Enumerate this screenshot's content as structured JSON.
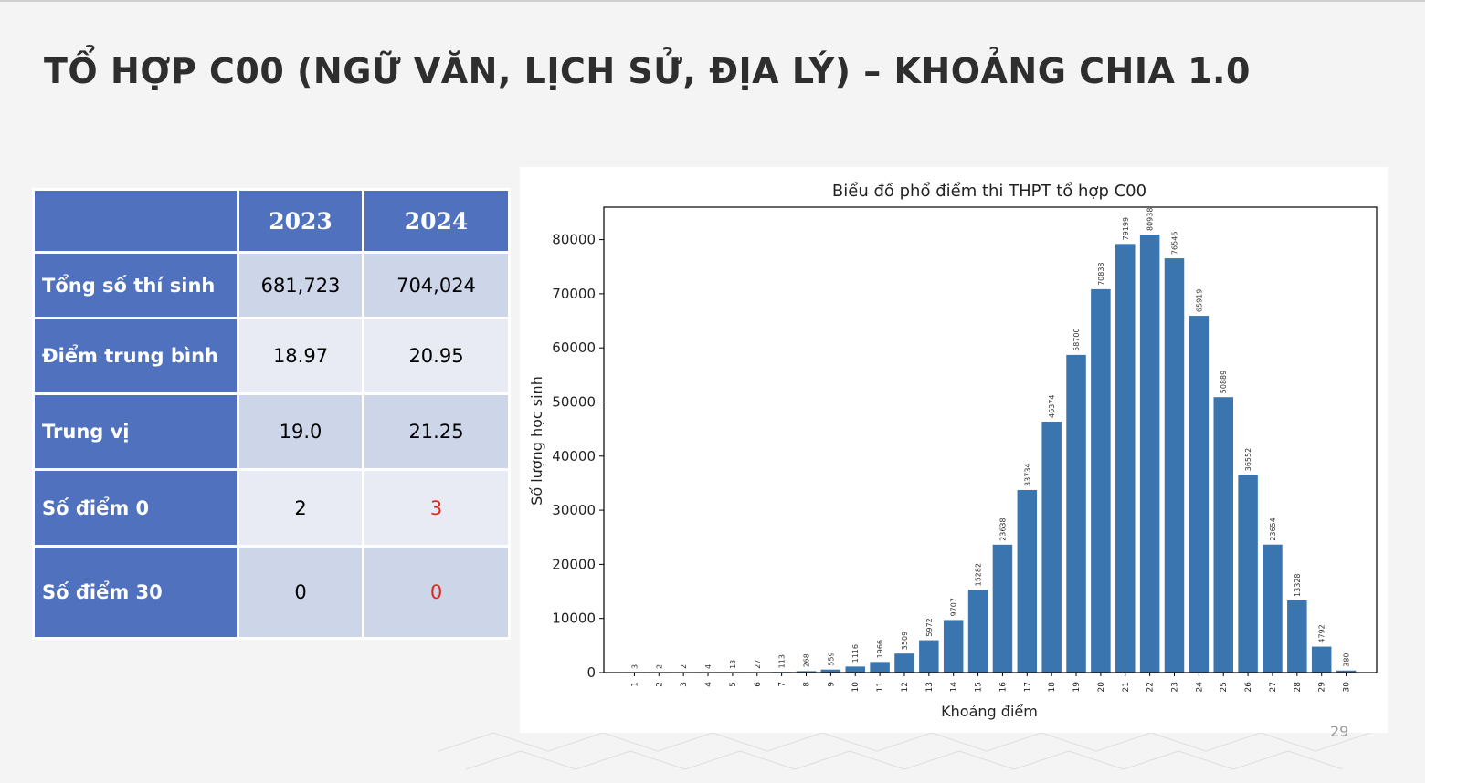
{
  "title": "TỔ HỢP C00 (NGỮ VĂN, LỊCH SỬ, ĐỊA LÝ) – KHOẢNG CHIA 1.0",
  "page_number": "29",
  "table": {
    "headers": [
      "",
      "2023",
      "2024"
    ],
    "rows": [
      {
        "label": "Tổng số thí sinh",
        "v2023": "681,723",
        "v2024": "704,024"
      },
      {
        "label": "Điểm trung bình",
        "v2023": "18.97",
        "v2024": "20.95"
      },
      {
        "label": "Trung vị",
        "v2023": "19.0",
        "v2024": "21.25"
      },
      {
        "label": "Số điểm 0",
        "v2023": "2",
        "v2024": "3"
      },
      {
        "label": "Số điểm 30",
        "v2023": "0",
        "v2024": "0"
      }
    ]
  },
  "chart_data": {
    "type": "bar",
    "title": "Biểu đồ phổ điểm thi THPT tổ hợp C00",
    "xlabel": "Khoảng điểm",
    "ylabel": "Số lượng học sinh",
    "categories": [
      "1",
      "2",
      "3",
      "4",
      "5",
      "6",
      "7",
      "8",
      "9",
      "10",
      "11",
      "12",
      "13",
      "14",
      "15",
      "16",
      "17",
      "18",
      "19",
      "20",
      "21",
      "22",
      "23",
      "24",
      "25",
      "26",
      "27",
      "28",
      "29",
      "30"
    ],
    "values": [
      3,
      2,
      2,
      4,
      13,
      27,
      113,
      268,
      559,
      1116,
      1966,
      3509,
      5972,
      9707,
      15282,
      23638,
      33734,
      46374,
      58700,
      70838,
      79199,
      80938,
      76546,
      65919,
      50889,
      36552,
      23654,
      13328,
      4792,
      380
    ],
    "yticks": [
      0,
      10000,
      20000,
      30000,
      40000,
      50000,
      60000,
      70000,
      80000
    ],
    "ylim": [
      0,
      86000
    ],
    "grid": false,
    "bar_color": "#3a75b0"
  }
}
